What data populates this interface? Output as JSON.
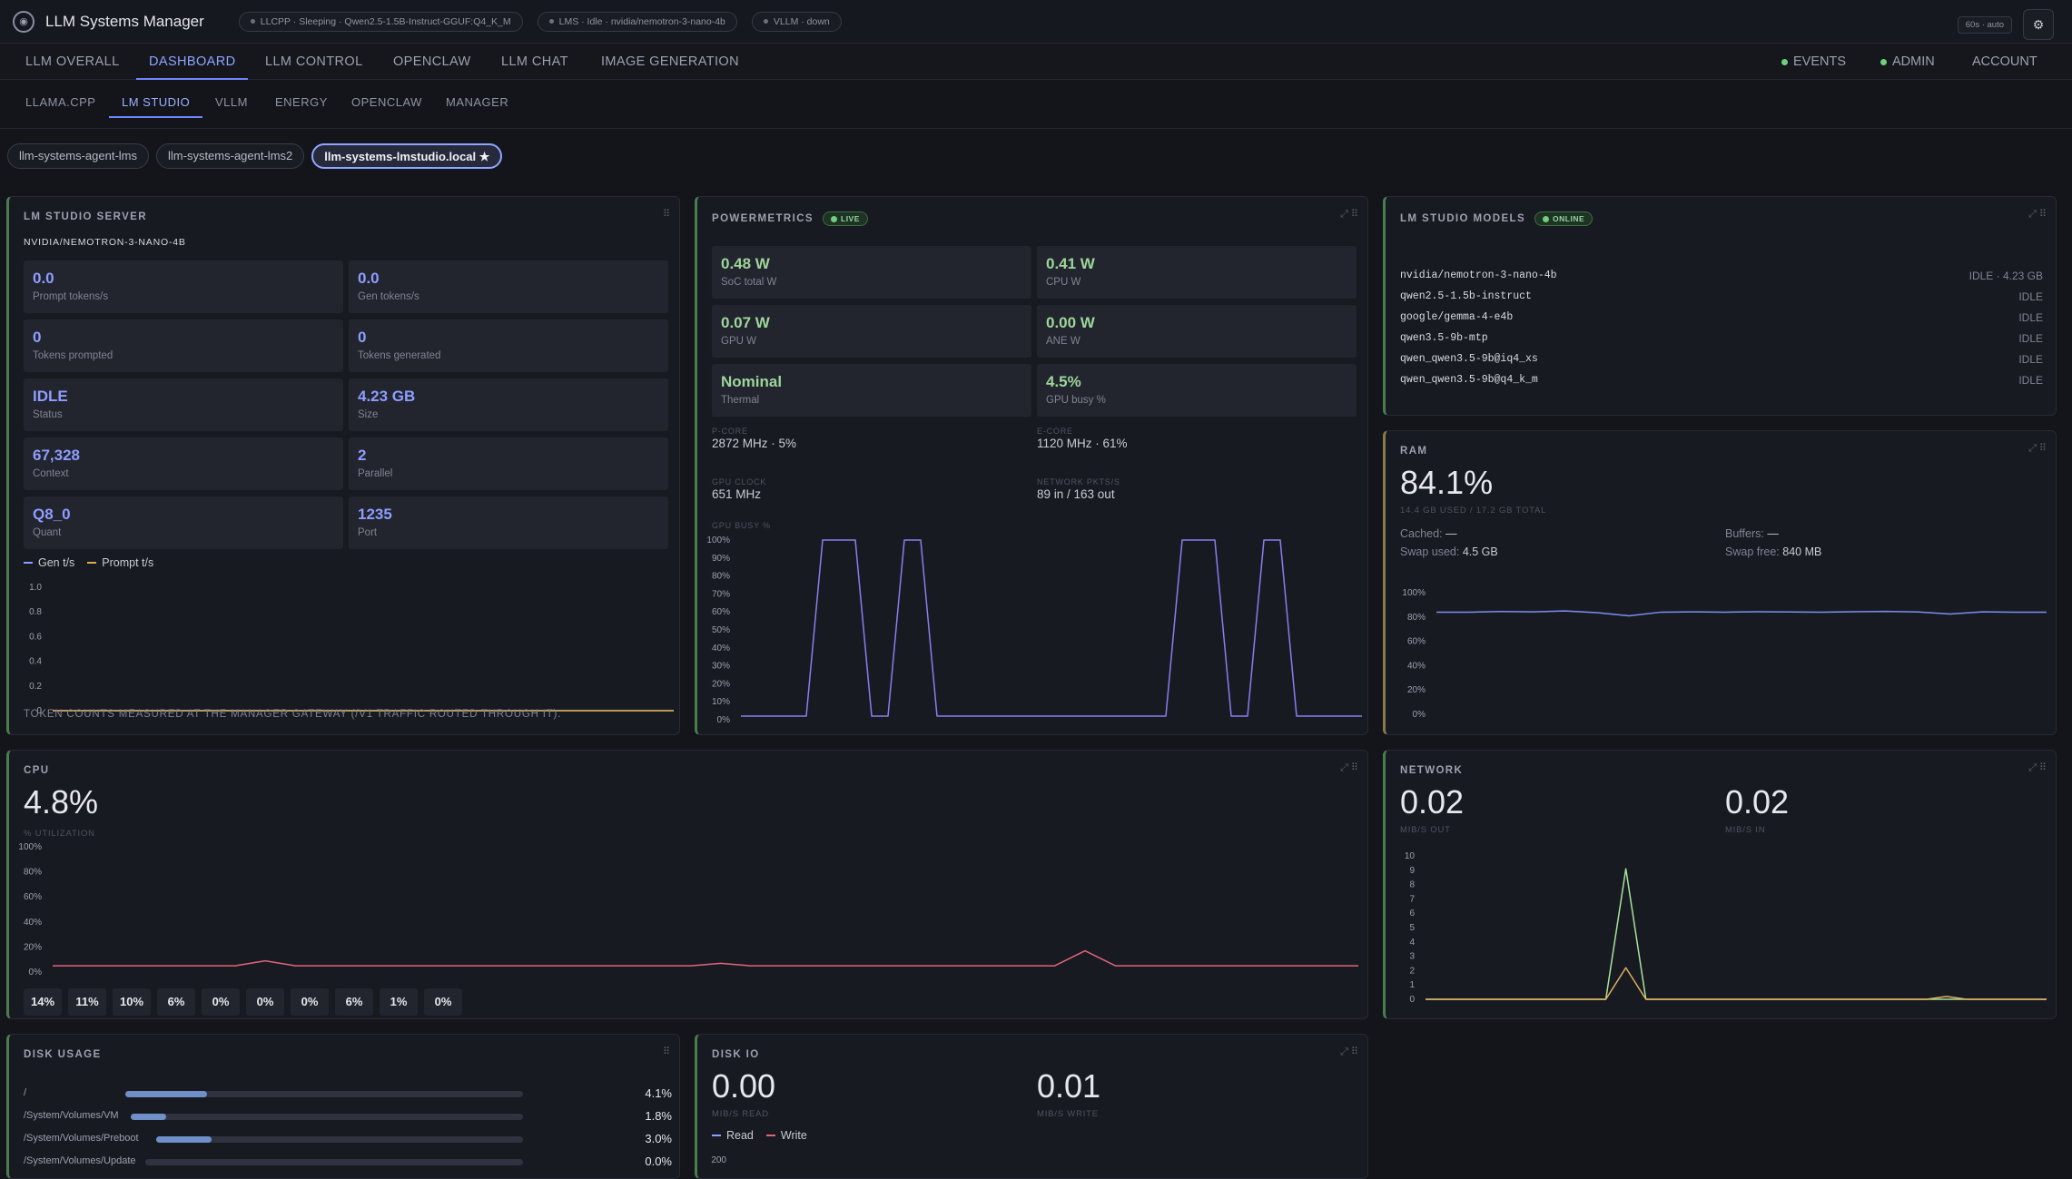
{
  "app": {
    "title": "LLM Systems Manager",
    "logo_icon": "brain-icon"
  },
  "status_pills": [
    {
      "label": "LLCPP · Sleeping · Qwen2.5-1.5B-Instruct-GGUF:Q4_K_M"
    },
    {
      "label": "LMS · Idle · nvidia/nemotron-3-nano-4b"
    },
    {
      "label": "VLLM · down"
    }
  ],
  "refresh_badge": "60s · auto",
  "main_nav": [
    "LLM OVERALL",
    "DASHBOARD",
    "LLM CONTROL",
    "OPENCLAW",
    "LLM CHAT",
    "IMAGE GENERATION"
  ],
  "main_nav_active": "DASHBOARD",
  "right_nav": {
    "events": "EVENTS",
    "admin": "ADMIN",
    "account": "ACCOUNT"
  },
  "sub_nav": [
    "LLAMA.CPP",
    "LM STUDIO",
    "VLLM",
    "ENERGY",
    "OPENCLAW",
    "MANAGER"
  ],
  "sub_nav_active": "LM STUDIO",
  "hosts": [
    "llm-systems-agent-lms",
    "llm-systems-agent-lms2",
    "llm-systems-lmstudio.local ★"
  ],
  "lm_server": {
    "title": "LM STUDIO SERVER",
    "model": "NVIDIA/NEMOTRON-3-NANO-4B",
    "tiles": [
      {
        "value": "0.0",
        "label": "Prompt tokens/s"
      },
      {
        "value": "0.0",
        "label": "Gen tokens/s"
      },
      {
        "value": "0",
        "label": "Tokens prompted"
      },
      {
        "value": "0",
        "label": "Tokens generated"
      },
      {
        "value": "IDLE",
        "label": "Status"
      },
      {
        "value": "4.23 GB",
        "label": "Size"
      },
      {
        "value": "67,328",
        "label": "Context"
      },
      {
        "value": "2",
        "label": "Parallel"
      },
      {
        "value": "Q8_0",
        "label": "Quant"
      },
      {
        "value": "1235",
        "label": "Port"
      }
    ],
    "legend": {
      "gen": "Gen t/s",
      "prompt": "Prompt t/s"
    },
    "footer": "TOKEN COUNTS MEASURED AT THE MANAGER GATEWAY (/V1 TRAFFIC ROUTED THROUGH IT)."
  },
  "powermetrics": {
    "title": "POWERMETRICS",
    "badge": "LIVE",
    "tiles": [
      {
        "value": "0.48 W",
        "label": "SoC total W"
      },
      {
        "value": "0.41 W",
        "label": "CPU W"
      },
      {
        "value": "0.07 W",
        "label": "GPU W"
      },
      {
        "value": "0.00 W",
        "label": "ANE W"
      },
      {
        "value": "Nominal",
        "label": "Thermal"
      },
      {
        "value": "4.5%",
        "label": "GPU busy %"
      }
    ],
    "pcore_label": "P-CORE",
    "pcore_value": "2872 MHz · 5%",
    "ecore_label": "E-CORE",
    "ecore_value": "1120 MHz · 61%",
    "gpuclock_label": "GPU CLOCK",
    "gpuclock_value": "651 MHz",
    "net_label": "NETWORK PKTS/S",
    "net_value": "89 in / 163 out",
    "chart_label": "GPU BUSY %"
  },
  "lm_models": {
    "title": "LM STUDIO MODELS",
    "badge": "ONLINE",
    "items": [
      {
        "name": "nvidia/nemotron-3-nano-4b",
        "status": "IDLE · 4.23 GB"
      },
      {
        "name": "qwen2.5-1.5b-instruct",
        "status": "IDLE"
      },
      {
        "name": "google/gemma-4-e4b",
        "status": "IDLE"
      },
      {
        "name": "qwen3.5-9b-mtp",
        "status": "IDLE"
      },
      {
        "name": "qwen_qwen3.5-9b@iq4_xs",
        "status": "IDLE"
      },
      {
        "name": "qwen_qwen3.5-9b@q4_k_m",
        "status": "IDLE"
      }
    ]
  },
  "ram": {
    "title": "RAM",
    "value": "84.1%",
    "caption": "14.4 GB USED / 17.2 GB TOTAL",
    "cached_label": "Cached:",
    "cached_value": "—",
    "buffers_label": "Buffers:",
    "buffers_value": "—",
    "swap_used_label": "Swap used:",
    "swap_used_value": "4.5 GB",
    "swap_free_label": "Swap free:",
    "swap_free_value": "840 MB"
  },
  "cpu": {
    "title": "CPU",
    "value": "4.8%",
    "caption": "% UTILIZATION",
    "cores": [
      "14%",
      "11%",
      "10%",
      "6%",
      "0%",
      "0%",
      "0%",
      "6%",
      "1%",
      "0%"
    ]
  },
  "network": {
    "title": "NETWORK",
    "out_value": "0.02",
    "out_caption": "MIB/S OUT",
    "in_value": "0.02",
    "in_caption": "MIB/S IN"
  },
  "disk_usage": {
    "title": "DISK USAGE",
    "rows": [
      {
        "name": "/",
        "percent": "4.1%"
      },
      {
        "name": "/System/Volumes/VM",
        "percent": "1.8%"
      },
      {
        "name": "/System/Volumes/Preboot",
        "percent": "3.0%"
      },
      {
        "name": "/System/Volumes/Update",
        "percent": "0.0%"
      }
    ]
  },
  "disk_io": {
    "title": "DISK IO",
    "read_value": "0.00",
    "read_caption": "MIB/S READ",
    "write_value": "0.01",
    "write_caption": "MIB/S WRITE",
    "legend_read": "Read",
    "legend_write": "Write"
  },
  "chart_data": [
    {
      "type": "line",
      "series": [
        {
          "name": "Gen t/s",
          "values": [
            0,
            0,
            0,
            0,
            0,
            0,
            0,
            0,
            0,
            0
          ]
        },
        {
          "name": "Prompt t/s",
          "values": [
            0,
            0,
            0,
            0,
            0,
            0,
            0,
            0,
            0,
            0
          ]
        }
      ],
      "ylim": [
        0,
        1
      ],
      "yticks": [
        "1.0",
        "0.8",
        "0.6",
        "0.4",
        "0.2",
        "0"
      ]
    },
    {
      "type": "line",
      "title": "GPU BUSY %",
      "series": [
        {
          "name": "GPU busy %",
          "values": [
            2,
            2,
            2,
            2,
            2,
            100,
            100,
            100,
            2,
            2,
            100,
            100,
            2,
            2,
            2,
            2,
            2,
            2,
            2,
            2,
            2,
            2,
            2,
            2,
            2,
            2,
            2,
            100,
            100,
            100,
            2,
            2,
            100,
            100,
            2,
            2,
            2,
            2,
            2
          ]
        }
      ],
      "ylim": [
        0,
        100
      ],
      "yticks": [
        "100%",
        "90%",
        "80%",
        "70%",
        "60%",
        "50%",
        "40%",
        "30%",
        "20%",
        "10%",
        "0%"
      ]
    },
    {
      "type": "line",
      "series": [
        {
          "name": "RAM %",
          "values": [
            84,
            84,
            84.5,
            84.2,
            85,
            83.6,
            81,
            84,
            84.2,
            84,
            84.3,
            84.1,
            84,
            84.3,
            84.6,
            84.1,
            82.5,
            84.2,
            84,
            84
          ]
        }
      ],
      "ylim": [
        0,
        100
      ],
      "yticks": [
        "100%",
        "80%",
        "60%",
        "40%",
        "20%",
        "0%"
      ]
    },
    {
      "type": "line",
      "series": [
        {
          "name": "CPU %",
          "values": [
            5,
            5,
            5,
            5,
            5,
            5,
            5,
            9,
            5,
            5,
            5,
            5,
            5,
            5,
            5,
            5,
            5,
            5,
            5,
            5,
            5,
            5,
            7,
            5,
            5,
            5,
            5,
            5,
            5,
            5,
            5,
            5,
            5,
            5,
            17,
            5,
            5,
            5,
            5,
            5,
            5,
            5,
            5,
            5
          ]
        }
      ],
      "ylim": [
        0,
        100
      ],
      "yticks": [
        "100%",
        "80%",
        "60%",
        "40%",
        "20%",
        "0%"
      ]
    },
    {
      "type": "line",
      "series": [
        {
          "name": "Out",
          "values": [
            0,
            0,
            0,
            0,
            0,
            0,
            0,
            0,
            0,
            0,
            9.1,
            0,
            0,
            0,
            0,
            0,
            0,
            0,
            0,
            0,
            0,
            0,
            0,
            0,
            0,
            0,
            0,
            0,
            0,
            0,
            0,
            0
          ]
        },
        {
          "name": "In",
          "values": [
            0,
            0,
            0,
            0,
            0,
            0,
            0,
            0,
            0,
            0,
            2.2,
            0,
            0,
            0,
            0,
            0,
            0,
            0,
            0,
            0,
            0,
            0,
            0,
            0,
            0,
            0,
            0.2,
            0,
            0,
            0,
            0,
            0
          ]
        }
      ],
      "ylim": [
        0,
        10
      ],
      "yticks": [
        "10",
        "9",
        "8",
        "7",
        "6",
        "5",
        "4",
        "3",
        "2",
        "1",
        "0"
      ]
    },
    {
      "type": "line",
      "series": [
        {
          "name": "Read",
          "values": []
        },
        {
          "name": "Write",
          "values": []
        }
      ],
      "yticks": [
        "200"
      ]
    }
  ],
  "colors": {
    "accent": "#8e9dff",
    "green": "#9ed59b",
    "gen": "#8e9dff",
    "prompt": "#e0a94c",
    "gpu": "#8b7cf0",
    "ram": "#7b8ff0",
    "cpu": "#e0647a",
    "net_out": "#a8e39a",
    "net_in": "#e0b060"
  },
  "disk_fill": [
    0.041,
    0.018,
    0.03,
    0.0
  ]
}
